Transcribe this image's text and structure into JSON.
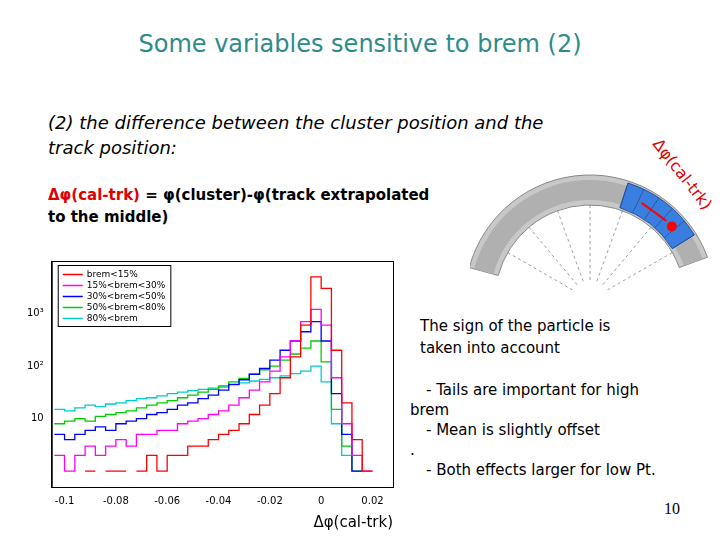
{
  "title": "Some variables sensitive to brem (2)",
  "intro": [
    "(2) the difference between the cluster position and the",
    "track position:"
  ],
  "definition": {
    "symbol": "Δφ(cal-trk)",
    "expression": " = φ(cluster)-φ(track extrapolated",
    "continuation": "to the middle)"
  },
  "diagram": {
    "label": "Δφ(cal-trk)"
  },
  "note": [
    "The sign of the particle is",
    "taken into account"
  ],
  "bullets": [
    "- Tails are important for high",
    "brem",
    "- Mean is slightly offset",
    ".",
    "- Both effects larger for low Pt."
  ],
  "page_number": "10",
  "chart_data": {
    "type": "histogram",
    "x_label": "Δφ(cal-trk)",
    "log": "y",
    "grid": false,
    "legend": "upper left",
    "xlim": [
      -0.105,
      0.028
    ],
    "xticks": [
      -0.1,
      -0.08,
      -0.06,
      -0.04,
      -0.02,
      0,
      0.02
    ],
    "ylim": [
      0.5,
      10000
    ],
    "yticks": [
      10,
      {
        "value": 100,
        "label": "10²"
      },
      {
        "value": 1000,
        "label": "10³"
      }
    ],
    "bins": [
      -0.104,
      -0.1,
      -0.096,
      -0.092,
      -0.088,
      -0.084,
      -0.08,
      -0.076,
      -0.072,
      -0.068,
      -0.064,
      -0.06,
      -0.056,
      -0.052,
      -0.048,
      -0.044,
      -0.04,
      -0.036,
      -0.032,
      -0.028,
      -0.024,
      -0.02,
      -0.016,
      -0.012,
      -0.008,
      -0.004,
      0,
      0.004,
      0.008,
      0.012,
      0.016,
      0.02,
      0.024,
      0.028
    ],
    "series": [
      {
        "name": "brem<15%",
        "color": "#ff0000",
        "values": [
          null,
          null,
          null,
          1,
          null,
          1,
          1,
          null,
          1,
          2,
          1,
          2,
          2,
          3,
          3,
          4,
          5,
          6,
          8,
          12,
          18,
          30,
          60,
          150,
          600,
          5000,
          3000,
          200,
          20,
          4,
          1,
          null,
          null
        ]
      },
      {
        "name": "15%<brem<30%",
        "color": "#ff00ff",
        "values": [
          2,
          1,
          2,
          3,
          2,
          3,
          4,
          3,
          5,
          5,
          6,
          6,
          8,
          9,
          10,
          12,
          14,
          18,
          25,
          35,
          50,
          80,
          150,
          300,
          700,
          1200,
          600,
          60,
          8,
          2,
          1,
          null,
          null
        ]
      },
      {
        "name": "30%<brem<50%",
        "color": "#0000ff",
        "values": [
          5,
          4,
          5,
          6,
          7,
          6,
          8,
          9,
          10,
          12,
          13,
          15,
          18,
          20,
          24,
          28,
          35,
          45,
          55,
          70,
          90,
          130,
          200,
          300,
          450,
          700,
          300,
          30,
          5,
          1,
          null,
          null,
          null
        ]
      },
      {
        "name": "50%<brem<80%",
        "color": "#00cc00",
        "values": [
          8,
          9,
          10,
          9,
          11,
          12,
          13,
          14,
          16,
          18,
          20,
          22,
          25,
          28,
          32,
          36,
          42,
          50,
          58,
          70,
          85,
          100,
          130,
          170,
          220,
          300,
          120,
          15,
          3,
          1,
          null,
          null,
          null
        ]
      },
      {
        "name": "80%<brem",
        "color": "#00cccc",
        "values": [
          15,
          14,
          16,
          18,
          17,
          19,
          20,
          22,
          24,
          25,
          27,
          30,
          32,
          34,
          36,
          38,
          40,
          44,
          48,
          52,
          56,
          60,
          65,
          72,
          80,
          100,
          50,
          8,
          2,
          null,
          null,
          null,
          null
        ]
      }
    ]
  }
}
